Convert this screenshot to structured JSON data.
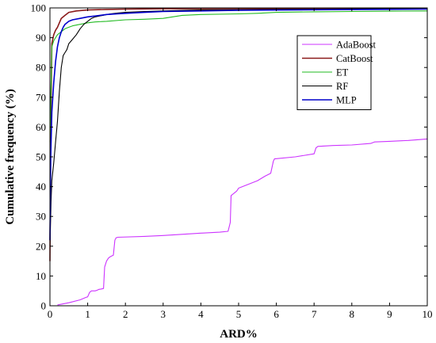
{
  "chart_data": {
    "type": "line",
    "title": "",
    "xlabel": "ARD%",
    "ylabel": "Cumulative frequency (%)",
    "xlim": [
      0,
      10
    ],
    "ylim": [
      0,
      100
    ],
    "xticks": [
      "0",
      "1",
      "2",
      "3",
      "4",
      "5",
      "6",
      "7",
      "8",
      "9",
      "10"
    ],
    "yticks": [
      "0",
      "10",
      "20",
      "30",
      "40",
      "50",
      "60",
      "70",
      "80",
      "90",
      "100"
    ],
    "grid": false,
    "legend_position": "top-right",
    "series": [
      {
        "name": "AdaBoost",
        "color": "#cc33ff",
        "x": [
          0.2,
          0.5,
          0.8,
          0.95,
          1.0,
          1.05,
          1.1,
          1.2,
          1.25,
          1.3,
          1.35,
          1.42,
          1.45,
          1.5,
          1.55,
          1.6,
          1.68,
          1.72,
          1.75,
          1.8,
          2.5,
          3.0,
          3.5,
          4.0,
          4.5,
          4.72,
          4.78,
          4.8,
          4.95,
          5.0,
          5.2,
          5.5,
          5.7,
          5.85,
          5.92,
          5.95,
          6.5,
          7.0,
          7.05,
          7.1,
          7.5,
          8.0,
          8.5,
          8.6,
          9.0,
          9.5,
          10.0
        ],
        "y": [
          0.3,
          1.0,
          2.0,
          2.8,
          3.0,
          4.5,
          5.0,
          5.0,
          5.2,
          5.5,
          5.6,
          5.8,
          13.0,
          15.0,
          16.0,
          16.5,
          17.0,
          22.0,
          22.8,
          23.0,
          23.3,
          23.6,
          24.0,
          24.4,
          24.7,
          25.0,
          28.0,
          37.0,
          38.5,
          39.5,
          40.5,
          42.0,
          43.5,
          44.5,
          48.5,
          49.3,
          50.0,
          51.0,
          53.0,
          53.5,
          53.8,
          54.0,
          54.5,
          55.0,
          55.2,
          55.5,
          56.0
        ]
      },
      {
        "name": "CatBoost",
        "color": "#8b1a1a",
        "x": [
          0.0,
          0.02,
          0.05,
          0.1,
          0.15,
          0.2,
          0.25,
          0.3,
          0.4,
          0.5,
          0.7,
          1.0,
          1.5,
          2.0,
          3.0,
          5.0,
          10.0
        ],
        "y": [
          15.0,
          60.0,
          88.0,
          91.0,
          92.5,
          93.5,
          95.0,
          96.5,
          97.5,
          98.5,
          99.0,
          99.3,
          99.5,
          99.6,
          99.7,
          99.8,
          99.9
        ]
      },
      {
        "name": "ET",
        "color": "#22bb22",
        "x": [
          0.0,
          0.05,
          0.1,
          0.15,
          0.2,
          0.3,
          0.4,
          0.5,
          0.6,
          0.8,
          1.0,
          1.2,
          1.5,
          2.0,
          2.5,
          3.0,
          3.5,
          4.0,
          5.0,
          5.5,
          6.0,
          7.0,
          8.0,
          9.0,
          10.0
        ],
        "y": [
          55.0,
          87.0,
          89.0,
          90.0,
          91.0,
          92.0,
          93.0,
          93.5,
          94.0,
          94.5,
          95.0,
          95.3,
          95.5,
          96.0,
          96.2,
          96.5,
          97.5,
          97.8,
          98.0,
          98.2,
          98.5,
          98.7,
          98.8,
          98.9,
          99.0
        ]
      },
      {
        "name": "RF",
        "color": "#000000",
        "x": [
          0.0,
          0.03,
          0.05,
          0.1,
          0.15,
          0.2,
          0.25,
          0.3,
          0.35,
          0.4,
          0.45,
          0.5,
          0.6,
          0.7,
          0.8,
          0.9,
          1.0,
          1.1,
          1.2,
          1.4,
          1.6,
          1.8,
          2.0,
          2.5,
          3.0,
          4.0,
          6.0,
          10.0
        ],
        "y": [
          20.0,
          35.0,
          42.0,
          48.0,
          55.0,
          62.0,
          72.0,
          80.0,
          84.0,
          85.0,
          86.0,
          88.0,
          89.5,
          91.0,
          93.0,
          94.5,
          95.5,
          96.5,
          97.0,
          97.5,
          98.0,
          98.3,
          98.5,
          98.8,
          99.0,
          99.3,
          99.5,
          99.8
        ]
      },
      {
        "name": "MLP",
        "color": "#0000cc",
        "x": [
          0.0,
          0.02,
          0.05,
          0.1,
          0.15,
          0.2,
          0.25,
          0.3,
          0.35,
          0.4,
          0.5,
          0.6,
          0.8,
          1.0,
          1.2,
          1.5,
          2.0,
          2.5,
          3.0,
          4.0,
          5.0,
          7.0,
          10.0
        ],
        "y": [
          22.0,
          50.0,
          65.0,
          75.0,
          82.0,
          87.0,
          90.0,
          92.0,
          93.5,
          94.5,
          95.5,
          96.0,
          96.5,
          97.0,
          97.3,
          97.8,
          98.2,
          98.5,
          98.8,
          99.0,
          99.2,
          99.4,
          99.6
        ]
      }
    ]
  }
}
